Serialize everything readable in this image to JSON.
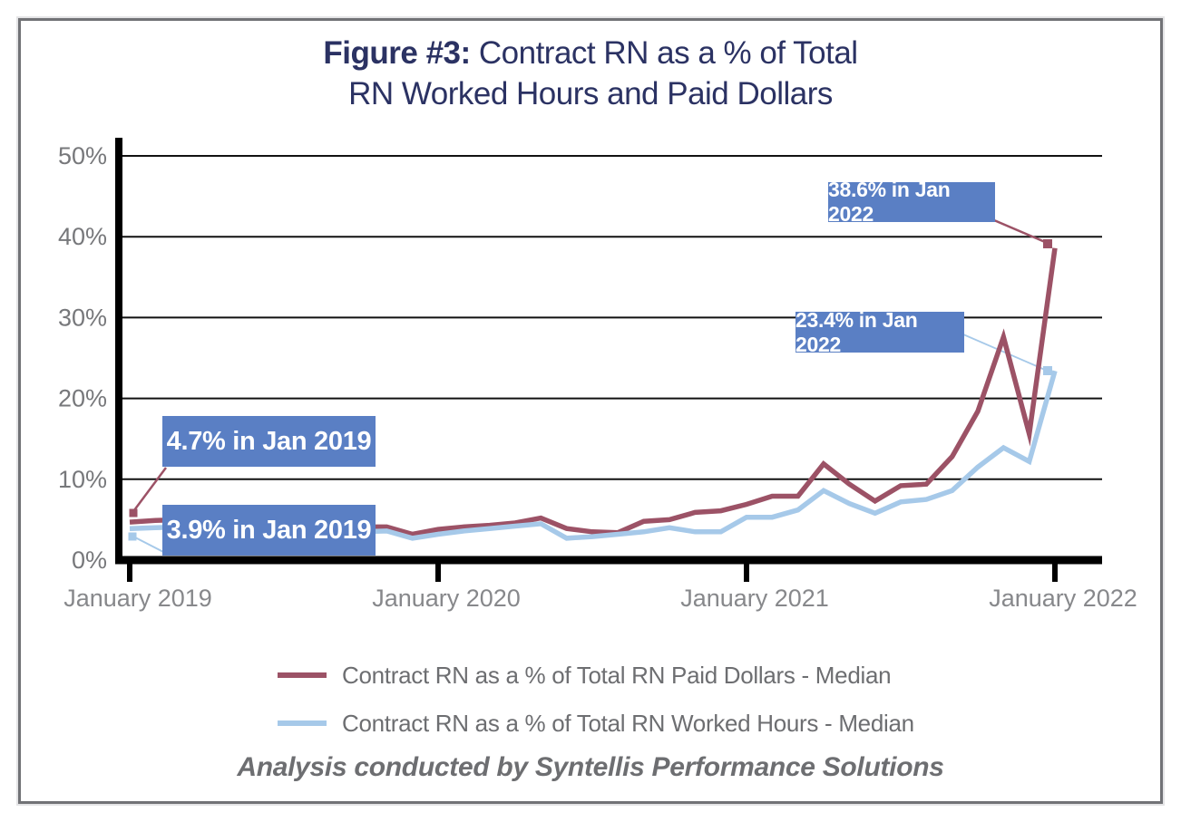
{
  "title": {
    "prefix": "Figure #3: ",
    "line1_rest": "Contract RN as a % of Total",
    "line2": "RN Worked Hours and Paid Dollars"
  },
  "footer": "Analysis conducted by Syntellis Performance Solutions",
  "colors": {
    "title": "#2b3263",
    "annotation_box": "#5a7fc4",
    "annotation_text": "#ffffff",
    "axis_label_text": "#77787b",
    "x_label_text": "#87888b",
    "legend_text": "#6d6e71",
    "gridline": "#111111",
    "axis": "#000000",
    "series_paid_dollars": "#9c5266",
    "series_worked_hours": "#a6c9e9"
  },
  "chart_data": {
    "type": "line",
    "title": "Figure #3: Contract RN as a % of Total RN Worked Hours and Paid Dollars",
    "x_unit": "month",
    "x_start": "2019-01",
    "x_end": "2022-01",
    "x_interval": "monthly",
    "x_tick_labels": [
      "January 2019",
      "January 2020",
      "January 2021",
      "January 2022"
    ],
    "x_tick_month_indices": [
      0,
      12,
      24,
      36
    ],
    "ylim": [
      0,
      50
    ],
    "y_ticks": [
      0,
      10,
      20,
      30,
      40,
      50
    ],
    "y_tick_labels": [
      "0%",
      "10%",
      "20%",
      "30%",
      "40%",
      "50%"
    ],
    "grid": "horizontal",
    "legend_position": "bottom",
    "series": [
      {
        "name": "Contract RN as a % of Total RN Paid Dollars - Median",
        "color": "#9c5266",
        "values": [
          4.7,
          4.9,
          5.0,
          4.9,
          4.8,
          4.7,
          4.5,
          4.4,
          4.2,
          4.1,
          4.1,
          3.2,
          3.8,
          4.1,
          4.3,
          4.6,
          5.2,
          3.9,
          3.5,
          3.4,
          4.8,
          5.0,
          5.9,
          6.1,
          6.9,
          7.9,
          7.9,
          11.9,
          9.4,
          7.3,
          9.2,
          9.4,
          12.8,
          18.4,
          27.6,
          15.6,
          38.6
        ]
      },
      {
        "name": "Contract RN as a % of Total RN Worked Hours - Median",
        "color": "#a6c9e9",
        "values": [
          3.9,
          4.0,
          4.1,
          4.1,
          4.0,
          4.0,
          3.9,
          3.8,
          3.6,
          3.5,
          3.6,
          2.7,
          3.2,
          3.6,
          3.9,
          4.2,
          4.5,
          2.7,
          2.9,
          3.2,
          3.5,
          4.0,
          3.5,
          3.5,
          5.3,
          5.3,
          6.2,
          8.6,
          7.0,
          5.8,
          7.2,
          7.5,
          8.6,
          11.5,
          13.9,
          12.2,
          23.4
        ]
      }
    ],
    "annotations": [
      {
        "text": "4.7% in Jan 2019",
        "series": 0,
        "month": "Jan 2019",
        "value": 4.7
      },
      {
        "text": "3.9% in Jan 2019",
        "series": 1,
        "month": "Jan 2019",
        "value": 3.9
      },
      {
        "text": "38.6% in Jan 2022",
        "series": 0,
        "month": "Jan 2022",
        "value": 38.6
      },
      {
        "text": "23.4% in Jan 2022",
        "series": 1,
        "month": "Jan 2022",
        "value": 23.4
      }
    ]
  }
}
